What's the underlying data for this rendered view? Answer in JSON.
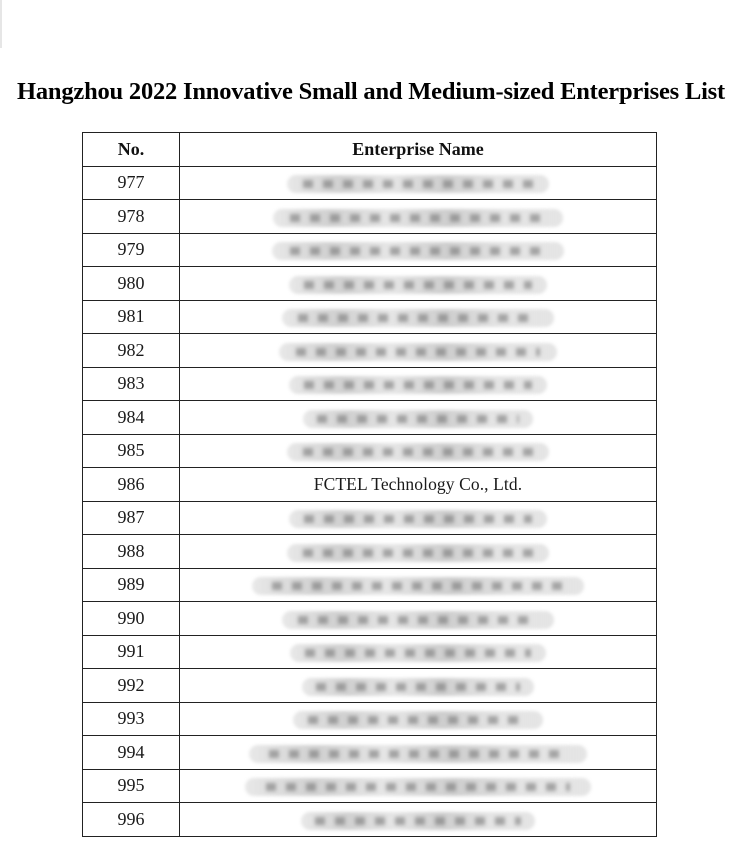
{
  "document": {
    "title": "Hangzhou 2022 Innovative Small and Medium-sized Enterprises List"
  },
  "table": {
    "headers": {
      "no": "No.",
      "name": "Enterprise Name"
    },
    "rows": [
      {
        "no": "977",
        "name": "",
        "redacted": true
      },
      {
        "no": "978",
        "name": "",
        "redacted": true
      },
      {
        "no": "979",
        "name": "",
        "redacted": true
      },
      {
        "no": "980",
        "name": "",
        "redacted": true
      },
      {
        "no": "981",
        "name": "",
        "redacted": true
      },
      {
        "no": "982",
        "name": "",
        "redacted": true
      },
      {
        "no": "983",
        "name": "",
        "redacted": true
      },
      {
        "no": "984",
        "name": "",
        "redacted": true
      },
      {
        "no": "985",
        "name": "",
        "redacted": true
      },
      {
        "no": "986",
        "name": "FCTEL Technology Co., Ltd.",
        "redacted": false
      },
      {
        "no": "987",
        "name": "",
        "redacted": true
      },
      {
        "no": "988",
        "name": "",
        "redacted": true
      },
      {
        "no": "989",
        "name": "",
        "redacted": true
      },
      {
        "no": "990",
        "name": "",
        "redacted": true
      },
      {
        "no": "991",
        "name": "",
        "redacted": true
      },
      {
        "no": "992",
        "name": "",
        "redacted": true
      },
      {
        "no": "993",
        "name": "",
        "redacted": true
      },
      {
        "no": "994",
        "name": "",
        "redacted": true
      },
      {
        "no": "995",
        "name": "",
        "redacted": true
      },
      {
        "no": "996",
        "name": "",
        "redacted": true
      }
    ]
  }
}
